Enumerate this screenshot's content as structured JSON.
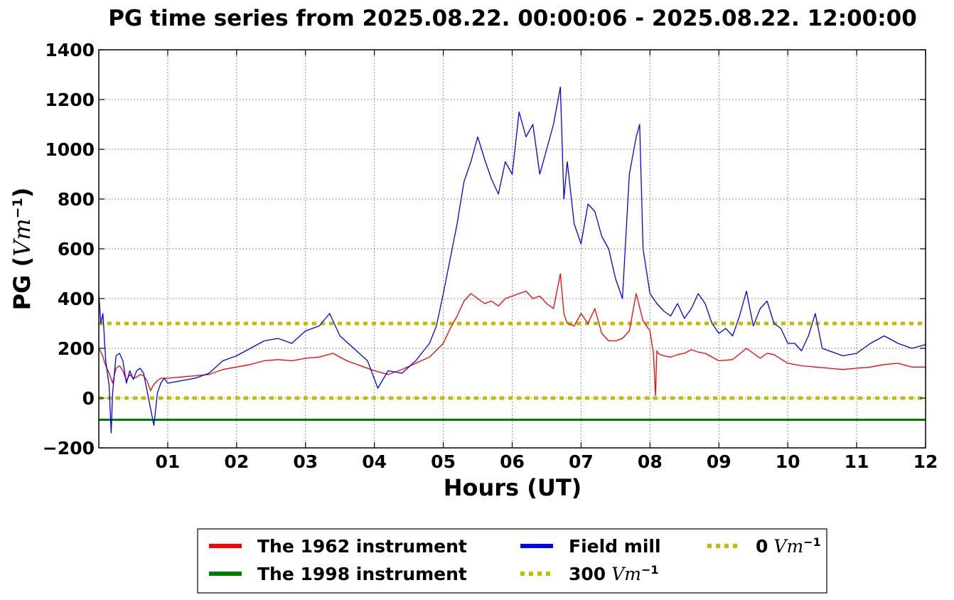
{
  "chart_data": {
    "type": "line",
    "title": "PG time series from 2025.08.22. 00:00:06 - 2025.08.22. 12:00:00",
    "xlabel": "Hours (UT)",
    "ylabel": {
      "prefix": "PG (",
      "math": "Vm",
      "exponent": "−1",
      "suffix": ")"
    },
    "xlim": [
      0,
      12
    ],
    "ylim": [
      -200,
      1400
    ],
    "x_ticks": [
      1,
      2,
      3,
      4,
      5,
      6,
      7,
      8,
      9,
      10,
      11,
      12
    ],
    "x_tick_labels": [
      "01",
      "02",
      "03",
      "04",
      "05",
      "06",
      "07",
      "08",
      "09",
      "10",
      "11",
      "12"
    ],
    "y_ticks": [
      -200,
      0,
      200,
      400,
      600,
      800,
      1000,
      1200,
      1400
    ],
    "y_tick_labels": [
      "−200",
      "0",
      "200",
      "400",
      "600",
      "800",
      "1000",
      "1200",
      "1400"
    ],
    "grid": true,
    "legend_placement": "below",
    "legend": [
      {
        "label": "The 1962 instrument",
        "color": "#ff0000",
        "style": "solid"
      },
      {
        "label": "The 1998 instrument",
        "color": "#008000",
        "style": "solid"
      },
      {
        "label": "Field mill",
        "color": "#0000ff",
        "style": "solid"
      },
      {
        "label": "300",
        "math": "Vm",
        "exponent": "−1",
        "color": "#bfbf00",
        "style": "dotted"
      },
      {
        "label": "0",
        "math": "Vm",
        "exponent": "−1",
        "color": "#bfbf00",
        "style": "dotted"
      }
    ],
    "series": [
      {
        "name": "The 1962 instrument",
        "color": "#ff0000",
        "x": [
          0,
          0.05,
          0.1,
          0.15,
          0.2,
          0.25,
          0.3,
          0.35,
          0.4,
          0.45,
          0.5,
          0.55,
          0.6,
          0.65,
          0.7,
          0.75,
          0.8,
          0.85,
          0.9,
          0.95,
          1.0,
          1.2,
          1.4,
          1.6,
          1.8,
          2.0,
          2.2,
          2.4,
          2.6,
          2.8,
          3.0,
          3.2,
          3.4,
          3.6,
          3.8,
          4.0,
          4.2,
          4.4,
          4.6,
          4.8,
          5.0,
          5.1,
          5.2,
          5.3,
          5.4,
          5.5,
          5.6,
          5.7,
          5.8,
          5.9,
          6.0,
          6.1,
          6.2,
          6.3,
          6.4,
          6.5,
          6.6,
          6.7,
          6.75,
          6.8,
          6.9,
          7.0,
          7.1,
          7.2,
          7.3,
          7.4,
          7.5,
          7.6,
          7.7,
          7.8,
          7.9,
          8.0,
          8.05,
          8.08,
          8.1,
          8.12,
          8.15,
          8.2,
          8.3,
          8.4,
          8.5,
          8.6,
          8.7,
          8.8,
          9.0,
          9.2,
          9.4,
          9.6,
          9.7,
          9.8,
          10.0,
          10.2,
          10.4,
          10.6,
          10.8,
          11.0,
          11.2,
          11.4,
          11.6,
          11.8,
          12.0
        ],
        "y": [
          200,
          175,
          130,
          100,
          60,
          120,
          130,
          110,
          70,
          95,
          80,
          85,
          95,
          90,
          70,
          30,
          55,
          70,
          80,
          80,
          80,
          85,
          90,
          95,
          115,
          125,
          135,
          150,
          155,
          150,
          160,
          165,
          180,
          150,
          130,
          110,
          95,
          115,
          140,
          165,
          220,
          280,
          330,
          390,
          420,
          400,
          380,
          390,
          370,
          400,
          410,
          420,
          430,
          400,
          410,
          380,
          360,
          500,
          340,
          300,
          290,
          340,
          300,
          360,
          260,
          230,
          230,
          240,
          270,
          420,
          310,
          270,
          180,
          10,
          190,
          180,
          175,
          170,
          165,
          175,
          180,
          195,
          185,
          180,
          150,
          155,
          200,
          160,
          180,
          175,
          140,
          130,
          125,
          120,
          115,
          120,
          125,
          135,
          140,
          125,
          125
        ]
      },
      {
        "name": "The 1998 instrument",
        "color": "#008000",
        "x": [
          0,
          12
        ],
        "y": [
          -87,
          -87
        ]
      },
      {
        "name": "Field mill",
        "color": "#0000ff",
        "x": [
          0,
          0.03,
          0.06,
          0.1,
          0.15,
          0.18,
          0.2,
          0.25,
          0.3,
          0.35,
          0.4,
          0.45,
          0.5,
          0.55,
          0.6,
          0.65,
          0.7,
          0.75,
          0.8,
          0.85,
          0.9,
          0.95,
          1.0,
          1.2,
          1.4,
          1.6,
          1.8,
          2.0,
          2.2,
          2.4,
          2.6,
          2.8,
          3.0,
          3.2,
          3.35,
          3.5,
          3.7,
          3.9,
          4.05,
          4.2,
          4.4,
          4.6,
          4.8,
          4.9,
          5.0,
          5.1,
          5.2,
          5.3,
          5.4,
          5.5,
          5.6,
          5.7,
          5.8,
          5.9,
          6.0,
          6.1,
          6.2,
          6.3,
          6.4,
          6.5,
          6.6,
          6.7,
          6.75,
          6.8,
          6.9,
          7.0,
          7.1,
          7.2,
          7.3,
          7.4,
          7.5,
          7.6,
          7.7,
          7.8,
          7.85,
          7.9,
          8.0,
          8.1,
          8.2,
          8.3,
          8.4,
          8.5,
          8.6,
          8.7,
          8.8,
          8.9,
          9.0,
          9.1,
          9.2,
          9.3,
          9.4,
          9.5,
          9.6,
          9.7,
          9.8,
          9.9,
          10.0,
          10.1,
          10.2,
          10.3,
          10.4,
          10.5,
          10.6,
          10.8,
          11.0,
          11.2,
          11.4,
          11.6,
          11.8,
          12.0
        ],
        "y": [
          420,
          300,
          340,
          150,
          50,
          -140,
          20,
          170,
          180,
          150,
          60,
          110,
          75,
          110,
          120,
          100,
          30,
          -40,
          -110,
          20,
          60,
          80,
          60,
          70,
          80,
          100,
          150,
          170,
          200,
          230,
          240,
          220,
          270,
          290,
          340,
          250,
          200,
          150,
          40,
          110,
          100,
          150,
          220,
          290,
          420,
          560,
          700,
          870,
          950,
          1050,
          960,
          880,
          820,
          950,
          900,
          1150,
          1050,
          1100,
          900,
          1000,
          1100,
          1250,
          800,
          950,
          700,
          620,
          780,
          750,
          650,
          600,
          480,
          400,
          900,
          1050,
          1100,
          600,
          420,
          380,
          350,
          330,
          380,
          320,
          360,
          420,
          380,
          300,
          260,
          280,
          250,
          330,
          430,
          290,
          360,
          390,
          300,
          280,
          220,
          220,
          190,
          250,
          340,
          200,
          190,
          170,
          180,
          220,
          250,
          220,
          200,
          215
        ]
      },
      {
        "name": "300",
        "color": "#bfbf00",
        "x": [
          0,
          12
        ],
        "y": [
          300,
          300
        ]
      },
      {
        "name": "0",
        "color": "#bfbf00",
        "x": [
          0,
          12
        ],
        "y": [
          0,
          0
        ]
      }
    ]
  }
}
